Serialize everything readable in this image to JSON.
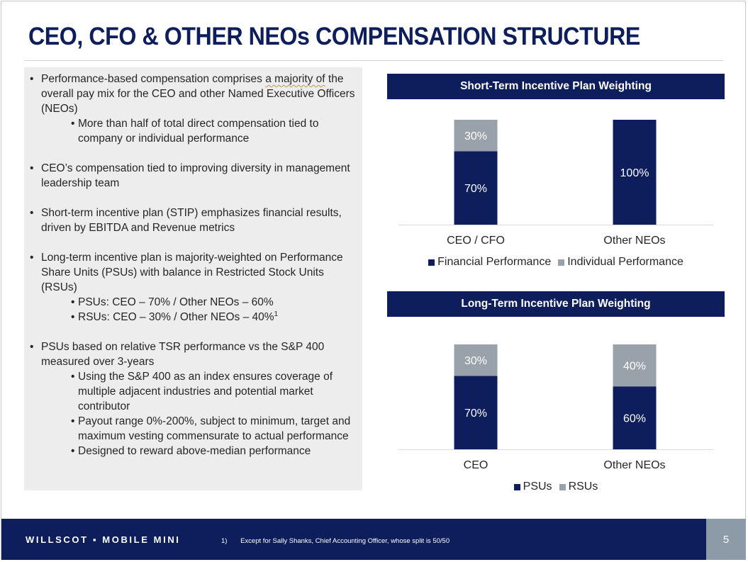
{
  "title": "CEO, CFO & OTHER NEOs COMPENSATION STRUCTURE",
  "colors": {
    "navy": "#0e1e5c",
    "gray": "#99a1ab",
    "panel": "#ededed"
  },
  "bullets": {
    "b1": {
      "pre": "Performance-based compensation comprises ",
      "emph": "a majority of",
      "post": " the overall pay mix for the CEO and other Named Executive Officers (NEOs)"
    },
    "b1_sub1": "More than half of total direct compensation tied to company or individual performance",
    "b2": "CEO’s compensation tied to improving diversity in management leadership team",
    "b3": "Short-term incentive plan (STIP) emphasizes financial results, driven by EBITDA and Revenue metrics",
    "b4": "Long-term incentive plan is majority-weighted on Performance Share Units (PSUs) with balance in Restricted Stock Units (RSUs)",
    "b4_sub1": "PSUs: CEO – 70% / Other NEOs – 60%",
    "b4_sub2": "RSUs: CEO – 30% / Other NEOs – 40%",
    "b4_sub2_sup": "1",
    "b5": "PSUs based on relative TSR performance vs the S&P 400 measured over 3-years",
    "b5_sub1": "Using the S&P 400 as an index ensures coverage of multiple adjacent industries and potential market contributor",
    "b5_sub2": "Payout range 0%-200%, subject to minimum, target and maximum vesting commensurate to actual performance",
    "b5_sub3": "Designed to reward above-median performance"
  },
  "chart_data": [
    {
      "type": "bar",
      "stacked": true,
      "title": "Short-Term Incentive Plan Weighting",
      "categories": [
        "CEO / CFO",
        "Other NEOs"
      ],
      "series": [
        {
          "name": "Financial Performance",
          "values": [
            70,
            100
          ],
          "labels": [
            "70%",
            "100%"
          ]
        },
        {
          "name": "Individual Performance",
          "values": [
            30,
            0
          ],
          "labels": [
            "30%",
            ""
          ]
        }
      ],
      "ylim": [
        0,
        100
      ],
      "legend": "bottom"
    },
    {
      "type": "bar",
      "stacked": true,
      "title": "Long-Term Incentive Plan Weighting",
      "categories": [
        "CEO",
        "Other NEOs"
      ],
      "series": [
        {
          "name": "PSUs",
          "values": [
            70,
            60
          ],
          "labels": [
            "70%",
            "60%"
          ]
        },
        {
          "name": "RSUs",
          "values": [
            30,
            40
          ],
          "labels": [
            "30%",
            "40%"
          ]
        }
      ],
      "ylim": [
        0,
        100
      ],
      "legend": "bottom"
    }
  ],
  "footer": {
    "logo": "WILLSCOT ▪ MOBILE MINI",
    "footnote_number": "1)",
    "footnote_text": "Except for Sally Shanks, Chief Accounting Officer, whose split is 50/50",
    "page_number": "5"
  }
}
